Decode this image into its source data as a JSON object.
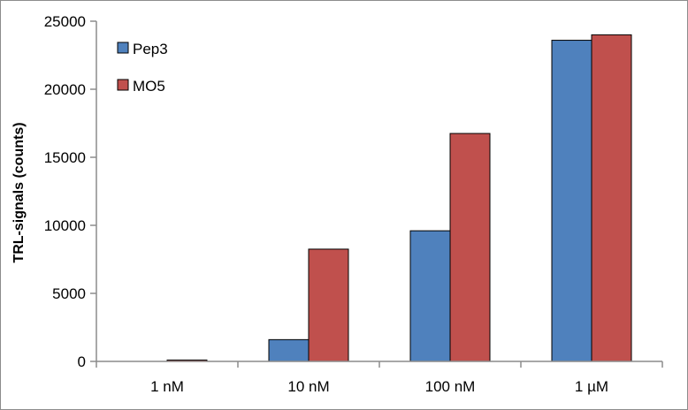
{
  "chart_data": {
    "type": "bar",
    "title": "",
    "xlabel": "",
    "ylabel": "TRL-signals (counts)",
    "ylim": [
      0,
      25000
    ],
    "yticks": [
      0,
      5000,
      10000,
      15000,
      20000,
      25000
    ],
    "grid": false,
    "legend_position": "top-left",
    "categories": [
      "1 nM",
      "10 nM",
      "100 nM",
      "1 µM"
    ],
    "series": [
      {
        "name": "Pep3",
        "color": "#4f81bd",
        "values": [
          0,
          1600,
          9600,
          23600
        ]
      },
      {
        "name": "MO5",
        "color": "#c0504d",
        "values": [
          100,
          8250,
          16750,
          24000
        ]
      }
    ]
  }
}
